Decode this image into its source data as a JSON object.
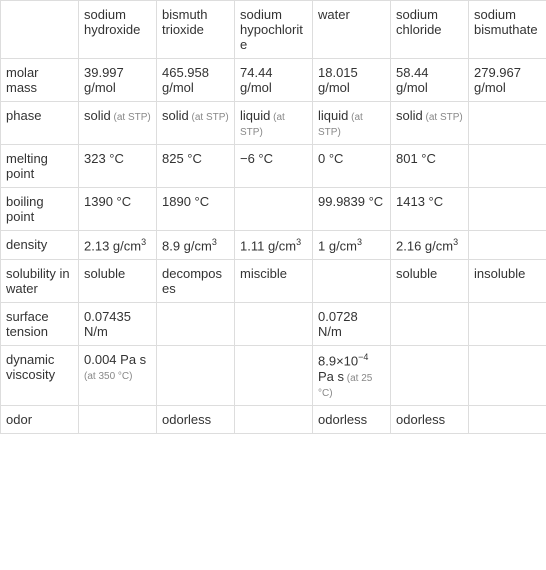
{
  "columns": [
    "",
    "sodium hydroxide",
    "bismuth trioxide",
    "sodium hypochlorite",
    "water",
    "sodium chloride",
    "sodium bismuthate"
  ],
  "rows": [
    {
      "label": "molar mass",
      "cells": [
        {
          "main": "39.997 g/mol"
        },
        {
          "main": "465.958 g/mol"
        },
        {
          "main": "74.44 g/mol"
        },
        {
          "main": "18.015 g/mol"
        },
        {
          "main": "58.44 g/mol"
        },
        {
          "main": "279.967 g/mol"
        }
      ]
    },
    {
      "label": "phase",
      "cells": [
        {
          "main": "solid",
          "note": "(at STP)"
        },
        {
          "main": "solid",
          "note": "(at STP)"
        },
        {
          "main": "liquid",
          "note": "(at STP)"
        },
        {
          "main": "liquid",
          "note": "(at STP)"
        },
        {
          "main": "solid",
          "note": "(at STP)"
        },
        {
          "main": ""
        }
      ]
    },
    {
      "label": "melting point",
      "cells": [
        {
          "main": "323 °C"
        },
        {
          "main": "825 °C"
        },
        {
          "main": "−6 °C"
        },
        {
          "main": "0 °C"
        },
        {
          "main": "801 °C"
        },
        {
          "main": ""
        }
      ]
    },
    {
      "label": "boiling point",
      "cells": [
        {
          "main": "1390 °C"
        },
        {
          "main": "1890 °C"
        },
        {
          "main": ""
        },
        {
          "main": "99.9839 °C"
        },
        {
          "main": "1413 °C"
        },
        {
          "main": ""
        }
      ]
    },
    {
      "label": "density",
      "cells": [
        {
          "main": "2.13 g/cm",
          "sup": "3"
        },
        {
          "main": "8.9 g/cm",
          "sup": "3"
        },
        {
          "main": "1.11 g/cm",
          "sup": "3"
        },
        {
          "main": "1 g/cm",
          "sup": "3"
        },
        {
          "main": "2.16 g/cm",
          "sup": "3"
        },
        {
          "main": ""
        }
      ]
    },
    {
      "label": "solubility in water",
      "cells": [
        {
          "main": "soluble"
        },
        {
          "main": "decomposes"
        },
        {
          "main": "miscible"
        },
        {
          "main": ""
        },
        {
          "main": "soluble"
        },
        {
          "main": "insoluble"
        }
      ]
    },
    {
      "label": "surface tension",
      "cells": [
        {
          "main": "0.07435 N/m"
        },
        {
          "main": ""
        },
        {
          "main": ""
        },
        {
          "main": "0.0728 N/m"
        },
        {
          "main": ""
        },
        {
          "main": ""
        }
      ]
    },
    {
      "label": "dynamic viscosity",
      "cells": [
        {
          "main": "0.004 Pa s",
          "note": "(at 350 °C)"
        },
        {
          "main": ""
        },
        {
          "main": ""
        },
        {
          "main": "8.9×10",
          "sup": "−4",
          "after": " Pa s",
          "note": "(at 25 °C)"
        },
        {
          "main": ""
        },
        {
          "main": ""
        }
      ]
    },
    {
      "label": "odor",
      "cells": [
        {
          "main": ""
        },
        {
          "main": "odorless"
        },
        {
          "main": ""
        },
        {
          "main": "odorless"
        },
        {
          "main": "odorless"
        },
        {
          "main": ""
        }
      ]
    }
  ],
  "style": {
    "border_color": "#dddddd",
    "text_color": "#333333",
    "note_color": "#888888",
    "background_color": "#ffffff",
    "font_size": 13,
    "note_font_size": 10
  }
}
